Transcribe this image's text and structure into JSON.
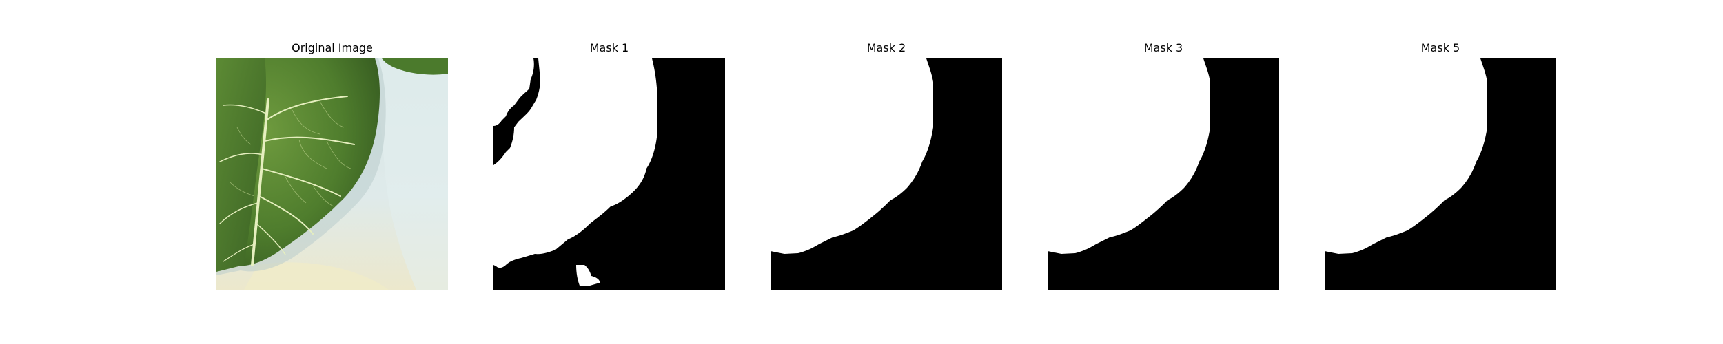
{
  "panels": [
    {
      "title": "Original Image",
      "kind": "photo"
    },
    {
      "title": "Mask 1",
      "kind": "mask"
    },
    {
      "title": "Mask 2",
      "kind": "mask"
    },
    {
      "title": "Mask 3",
      "kind": "mask"
    },
    {
      "title": "Mask 5",
      "kind": "mask"
    }
  ],
  "colors": {
    "mask_background": "#000000",
    "mask_foreground": "#ffffff",
    "leaf_dark": "#3f6a27",
    "leaf_mid": "#5a8a35",
    "leaf_light": "#7aa54a",
    "vein": "#e8f0c0",
    "tray_light": "#dbe8e8",
    "tray_shadow": "#c4d6d6",
    "tray_warm": "#ebe8cf"
  }
}
